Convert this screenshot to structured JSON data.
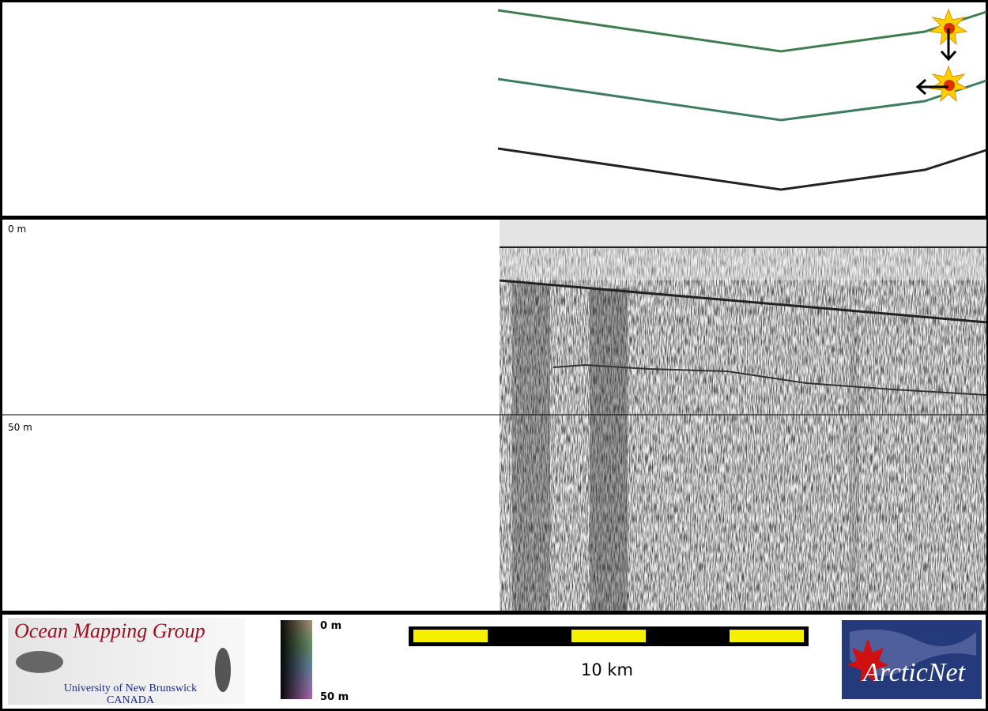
{
  "profile": {
    "depth_labels": [
      "0 m",
      "50 m"
    ]
  },
  "legend": {
    "top": "0 m",
    "bottom": "50 m"
  },
  "scale_bar": {
    "label": "10 km"
  },
  "logos": {
    "omg": {
      "title": "Ocean Mapping Group",
      "line1": "University of New Brunswick",
      "line2": "CANADA"
    },
    "arcticnet": "ArcticNet"
  }
}
